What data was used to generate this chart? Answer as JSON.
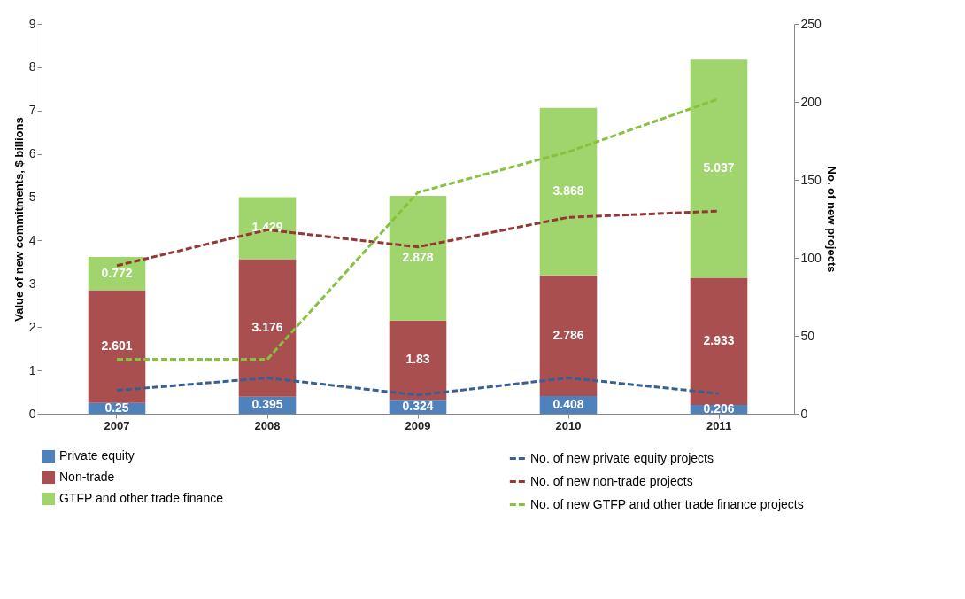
{
  "chart_data": {
    "type": "bar",
    "stacked": true,
    "categories": [
      "2007",
      "2008",
      "2009",
      "2010",
      "2011"
    ],
    "ylabel": "Value of new commitments, $ billions",
    "y2label": "No. of new projects",
    "ylim": [
      0,
      9
    ],
    "yticks": [
      0,
      1,
      2,
      3,
      4,
      5,
      6,
      7,
      8,
      9
    ],
    "y2lim": [
      0,
      250
    ],
    "y2ticks": [
      0,
      50,
      100,
      150,
      200,
      250
    ],
    "grid": false,
    "legend": "bottom",
    "line_style": "dashed",
    "marker": "none",
    "series": [
      {
        "name": "Private equity",
        "color": "#4f81bd",
        "values": [
          0.25,
          0.395,
          0.324,
          0.408,
          0.206
        ],
        "value_labels": [
          "0.25",
          "0.395",
          "0.324",
          "0.408",
          "0.206"
        ]
      },
      {
        "name": "Non-trade",
        "color": "#a94f4f",
        "values": [
          2.601,
          3.176,
          1.83,
          2.786,
          2.933
        ],
        "value_labels": [
          "2.601",
          "3.176",
          "1.83",
          "2.786",
          "2.933"
        ]
      },
      {
        "name": "GTFP and other trade finance",
        "color": "#a0d46c",
        "values": [
          0.772,
          1.429,
          2.878,
          3.868,
          5.037
        ],
        "value_labels": [
          "0.772",
          "1.429",
          "2.878",
          "3.868",
          "5.037"
        ]
      },
      {
        "name": "No. of new private equity projects",
        "type": "line",
        "axis": "y2",
        "color": "#376092",
        "values": [
          15,
          23,
          12,
          23,
          13
        ]
      },
      {
        "name": "No. of new non-trade projects",
        "type": "line",
        "axis": "y2",
        "color": "#953735",
        "values": [
          95,
          118,
          107,
          126,
          130
        ]
      },
      {
        "name": "No. of new GTFP and other trade finance projects",
        "type": "line",
        "axis": "y2",
        "color": "#86c23e",
        "values": [
          35,
          35,
          142,
          168,
          202
        ]
      }
    ]
  }
}
